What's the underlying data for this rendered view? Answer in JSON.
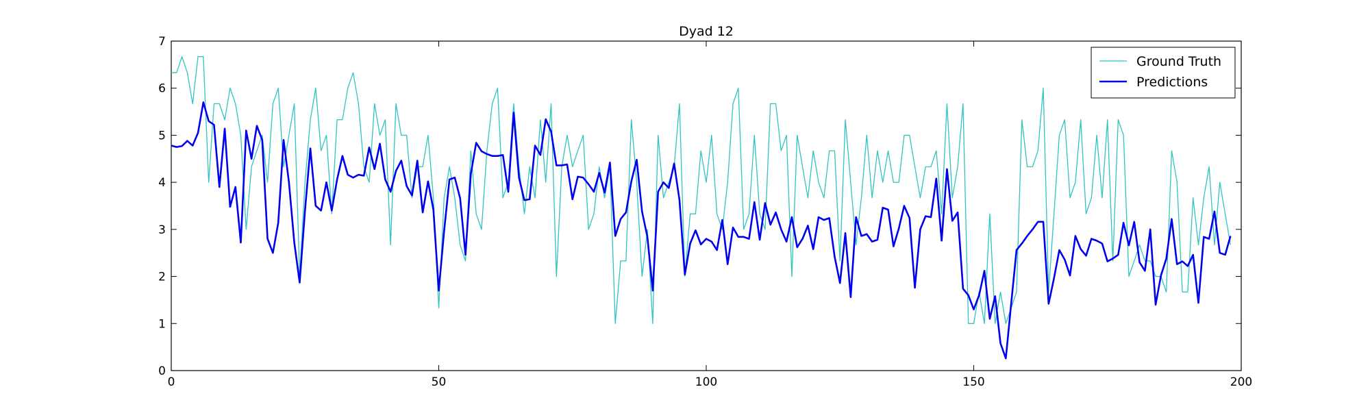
{
  "chart_data": {
    "type": "line",
    "title": "Dyad 12",
    "xlabel": "",
    "ylabel": "",
    "xlim": [
      0,
      200
    ],
    "ylim": [
      0,
      7
    ],
    "xticks": [
      0,
      50,
      100,
      150,
      200
    ],
    "yticks": [
      0,
      1,
      2,
      3,
      4,
      5,
      6,
      7
    ],
    "grid": false,
    "legend_position": "top-right",
    "colors": {
      "ground_truth": "#2ec4c0",
      "predictions": "#0000ee"
    },
    "series": [
      {
        "name": "Ground Truth",
        "values": [
          6.33,
          6.33,
          6.67,
          6.33,
          5.67,
          6.67,
          6.67,
          4.0,
          5.67,
          5.67,
          5.33,
          6.0,
          5.67,
          5.0,
          3.0,
          4.33,
          4.67,
          5.0,
          4.0,
          5.67,
          6.0,
          4.33,
          5.0,
          5.67,
          2.0,
          4.0,
          5.33,
          6.0,
          4.67,
          5.0,
          3.33,
          5.33,
          5.33,
          6.0,
          6.33,
          5.67,
          4.33,
          4.0,
          5.67,
          5.0,
          5.33,
          2.67,
          5.67,
          5.0,
          5.0,
          3.67,
          4.33,
          4.33,
          5.0,
          3.67,
          1.33,
          3.67,
          4.33,
          3.67,
          2.67,
          2.33,
          4.67,
          3.33,
          3.0,
          4.67,
          5.67,
          6.0,
          3.67,
          4.0,
          5.67,
          4.33,
          3.33,
          4.33,
          3.67,
          5.33,
          4.0,
          5.67,
          2.0,
          4.33,
          5.0,
          4.33,
          4.67,
          5.0,
          3.0,
          3.33,
          4.33,
          3.67,
          4.33,
          1.0,
          2.33,
          2.33,
          5.33,
          4.0,
          2.0,
          3.0,
          1.0,
          5.0,
          3.67,
          4.0,
          4.33,
          5.67,
          2.0,
          3.33,
          3.33,
          4.67,
          4.0,
          5.0,
          3.33,
          3.0,
          4.0,
          5.67,
          6.0,
          3.0,
          3.33,
          5.0,
          3.33,
          3.0,
          5.67,
          5.67,
          4.67,
          5.0,
          2.0,
          5.0,
          4.33,
          3.67,
          4.67,
          4.0,
          3.67,
          4.67,
          4.67,
          2.33,
          5.33,
          4.0,
          2.67,
          3.67,
          5.0,
          3.67,
          4.67,
          4.0,
          4.67,
          4.0,
          4.0,
          5.0,
          5.0,
          4.33,
          3.67,
          4.33,
          4.33,
          4.67,
          3.33,
          5.67,
          3.67,
          4.33,
          5.67,
          1.0,
          1.0,
          1.67,
          1.0,
          3.33,
          1.0,
          1.67,
          1.0,
          1.33,
          1.67,
          5.33,
          4.33,
          4.33,
          4.67,
          6.0,
          1.67,
          3.33,
          5.0,
          5.33,
          3.67,
          4.0,
          5.33,
          3.33,
          3.67,
          5.0,
          3.67,
          5.33,
          2.33,
          5.33,
          5.0,
          2.0,
          2.33,
          2.67,
          2.33,
          2.33,
          2.0,
          2.0,
          1.67,
          4.67,
          4.0,
          1.67,
          1.67,
          3.67,
          2.67,
          3.67,
          4.33,
          2.67,
          4.0,
          3.33,
          2.67
        ]
      },
      {
        "name": "Predictions",
        "values": [
          4.78,
          4.75,
          4.77,
          4.88,
          4.78,
          5.05,
          5.7,
          5.3,
          5.22,
          3.9,
          5.14,
          3.48,
          3.9,
          2.72,
          5.1,
          4.5,
          5.2,
          4.9,
          2.8,
          2.5,
          3.14,
          4.9,
          4.0,
          2.72,
          1.87,
          3.4,
          4.72,
          3.5,
          3.4,
          4.0,
          3.4,
          4.06,
          4.56,
          4.16,
          4.1,
          4.16,
          4.14,
          4.74,
          4.28,
          4.82,
          4.06,
          3.8,
          4.24,
          4.46,
          3.92,
          3.72,
          4.46,
          3.36,
          4.02,
          3.42,
          1.7,
          2.96,
          4.06,
          4.1,
          3.66,
          2.46,
          4.18,
          4.84,
          4.66,
          4.6,
          4.56,
          4.56,
          4.58,
          3.8,
          5.48,
          4.1,
          3.62,
          3.64,
          4.78,
          4.58,
          5.34,
          5.08,
          4.36,
          4.36,
          4.38,
          3.64,
          4.12,
          4.1,
          3.96,
          3.8,
          4.2,
          3.78,
          4.42,
          2.86,
          3.22,
          3.36,
          4.02,
          4.48,
          3.38,
          2.84,
          1.7,
          3.8,
          4.0,
          3.88,
          4.4,
          3.62,
          2.04,
          2.7,
          2.98,
          2.68,
          2.8,
          2.74,
          2.56,
          3.2,
          2.26,
          3.04,
          2.84,
          2.84,
          2.8,
          3.58,
          2.78,
          3.56,
          3.1,
          3.36,
          3.0,
          2.74,
          3.26,
          2.62,
          2.8,
          3.08,
          2.58,
          3.26,
          3.2,
          3.24,
          2.42,
          1.86,
          2.92,
          1.56,
          3.26,
          2.86,
          2.9,
          2.74,
          2.78,
          3.46,
          3.42,
          2.64,
          3.02,
          3.5,
          3.24,
          1.76,
          3.0,
          3.28,
          3.26,
          4.08,
          2.76,
          4.28,
          3.18,
          3.36,
          1.74,
          1.6,
          1.3,
          1.6,
          2.12,
          1.1,
          1.58,
          0.58,
          0.26,
          1.42,
          2.56,
          2.7,
          2.86,
          3.0,
          3.16,
          3.16,
          1.42,
          1.96,
          2.56,
          2.36,
          2.02,
          2.86,
          2.58,
          2.44,
          2.8,
          2.76,
          2.7,
          2.32,
          2.38,
          2.46,
          3.14,
          2.66,
          3.16,
          2.3,
          2.12,
          3.0,
          1.4,
          2.02,
          2.38,
          3.22,
          2.26,
          2.32,
          2.22,
          2.46,
          1.44,
          2.84,
          2.8,
          3.38,
          2.5,
          2.46,
          2.86
        ]
      }
    ]
  }
}
